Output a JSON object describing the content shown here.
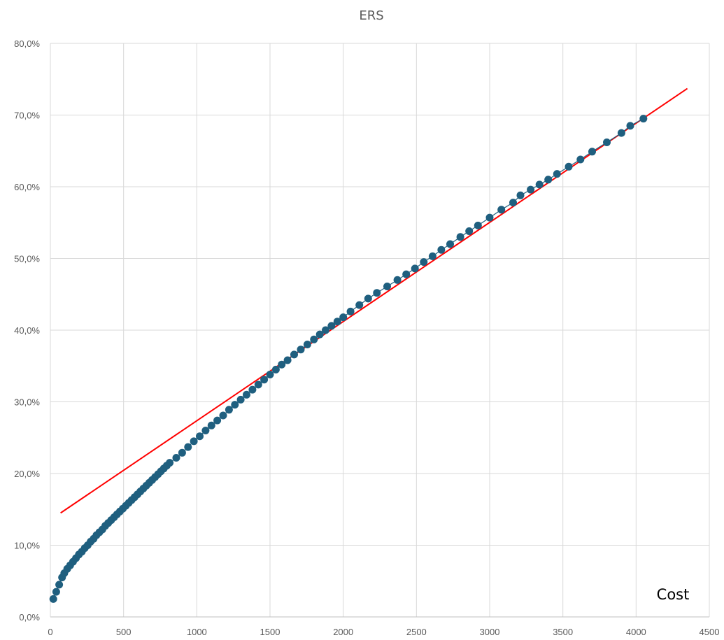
{
  "chart_data": {
    "type": "scatter",
    "title": "ERS",
    "annotation": "Cost",
    "xlabel": "",
    "ylabel": "",
    "xlim": [
      0,
      4500
    ],
    "ylim": [
      0,
      0.8
    ],
    "x_ticks": [
      0,
      500,
      1000,
      1500,
      2000,
      2500,
      3000,
      3500,
      4000,
      4500
    ],
    "x_tick_labels": [
      "0",
      "500",
      "1000",
      "1500",
      "2000",
      "2500",
      "3000",
      "3500",
      "4000",
      "4500"
    ],
    "y_ticks": [
      0,
      0.1,
      0.2,
      0.3,
      0.4,
      0.5,
      0.6,
      0.7,
      0.8
    ],
    "y_tick_labels": [
      "0,0%",
      "10,0%",
      "20,0%",
      "30,0%",
      "40,0%",
      "50,0%",
      "60,0%",
      "70,0%",
      "80,0%"
    ],
    "grid": true,
    "legend": "none",
    "series": [
      {
        "color": "#1f5f7f",
        "marker": "circle",
        "x": [
          20,
          40,
          60,
          80,
          95,
          115,
          135,
          155,
          175,
          195,
          215,
          235,
          255,
          275,
          295,
          315,
          335,
          355,
          375,
          395,
          415,
          435,
          455,
          475,
          495,
          515,
          535,
          555,
          575,
          595,
          615,
          635,
          655,
          675,
          695,
          715,
          735,
          755,
          775,
          795,
          815,
          860,
          900,
          940,
          980,
          1020,
          1060,
          1100,
          1140,
          1180,
          1220,
          1260,
          1300,
          1340,
          1380,
          1420,
          1460,
          1500,
          1540,
          1580,
          1620,
          1665,
          1710,
          1755,
          1800,
          1840,
          1880,
          1920,
          1960,
          2000,
          2050,
          2110,
          2170,
          2230,
          2300,
          2370,
          2430,
          2490,
          2550,
          2610,
          2670,
          2730,
          2800,
          2860,
          2920,
          3000,
          3080,
          3160,
          3210,
          3280,
          3340,
          3400,
          3460,
          3540,
          3620,
          3700,
          3800,
          3900,
          3960,
          4050
        ],
        "y": [
          0.025,
          0.035,
          0.045,
          0.055,
          0.061,
          0.067,
          0.072,
          0.077,
          0.082,
          0.087,
          0.091,
          0.096,
          0.1,
          0.105,
          0.109,
          0.114,
          0.118,
          0.122,
          0.127,
          0.131,
          0.135,
          0.139,
          0.143,
          0.147,
          0.151,
          0.155,
          0.159,
          0.163,
          0.167,
          0.171,
          0.175,
          0.179,
          0.183,
          0.187,
          0.191,
          0.195,
          0.199,
          0.203,
          0.207,
          0.211,
          0.215,
          0.222,
          0.229,
          0.237,
          0.245,
          0.252,
          0.26,
          0.267,
          0.274,
          0.281,
          0.289,
          0.296,
          0.303,
          0.31,
          0.317,
          0.324,
          0.331,
          0.338,
          0.345,
          0.352,
          0.358,
          0.366,
          0.373,
          0.38,
          0.387,
          0.394,
          0.4,
          0.406,
          0.412,
          0.418,
          0.426,
          0.435,
          0.444,
          0.452,
          0.461,
          0.47,
          0.478,
          0.486,
          0.495,
          0.503,
          0.512,
          0.52,
          0.53,
          0.538,
          0.546,
          0.557,
          0.568,
          0.578,
          0.588,
          0.596,
          0.603,
          0.61,
          0.618,
          0.628,
          0.638,
          0.649,
          0.662,
          0.675,
          0.685,
          0.695
        ]
      }
    ],
    "trendline": {
      "color": "#ff0000",
      "type": "linear",
      "x": [
        70,
        4350
      ],
      "y": [
        0.145,
        0.737
      ]
    }
  }
}
